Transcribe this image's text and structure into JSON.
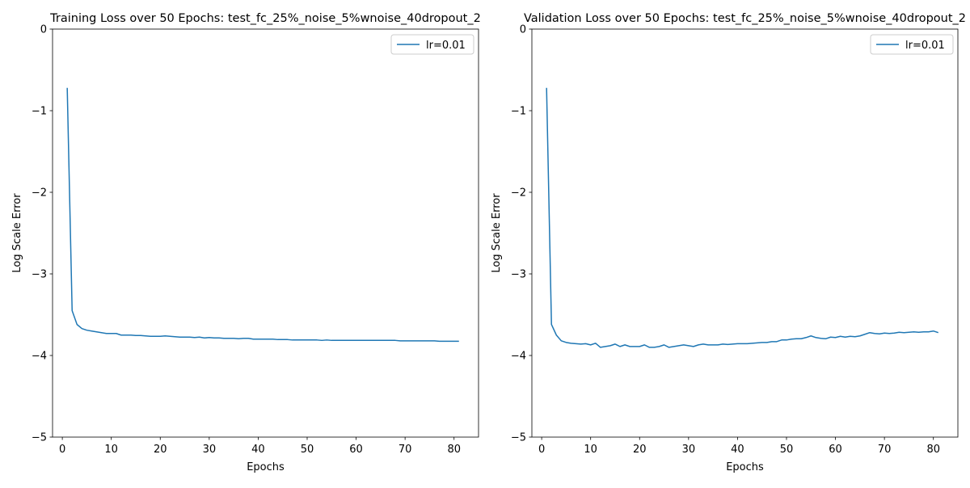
{
  "chart_data": [
    {
      "type": "line",
      "title": "Training Loss over 50 Epochs: test_fc_25%_noise_5%wnoise_40dropout_2",
      "xlabel": "Epochs",
      "ylabel": "Log Scale Error",
      "xlim": [
        -2,
        85
      ],
      "ylim": [
        -5,
        0
      ],
      "xticks": [
        0,
        10,
        20,
        30,
        40,
        50,
        60,
        70,
        80
      ],
      "yticks": [
        0,
        -1,
        -2,
        -3,
        -4,
        -5
      ],
      "yticklabels": [
        "0",
        "−1",
        "−2",
        "−3",
        "−4",
        "−5"
      ],
      "legend_position": "upper right",
      "grid": false,
      "series": [
        {
          "name": "lr=0.01",
          "color": "#1f77b4",
          "x": [
            1,
            2,
            3,
            4,
            5,
            6,
            7,
            8,
            9,
            10,
            11,
            12,
            13,
            14,
            15,
            16,
            17,
            18,
            19,
            20,
            21,
            22,
            23,
            24,
            25,
            26,
            27,
            28,
            29,
            30,
            31,
            32,
            33,
            34,
            35,
            36,
            37,
            38,
            39,
            40,
            41,
            42,
            43,
            44,
            45,
            46,
            47,
            48,
            49,
            50,
            51,
            52,
            53,
            54,
            55,
            56,
            57,
            58,
            59,
            60,
            61,
            62,
            63,
            64,
            65,
            66,
            67,
            68,
            69,
            70,
            71,
            72,
            73,
            74,
            75,
            76,
            77,
            78,
            79,
            80,
            81
          ],
          "values": [
            -0.72,
            -3.45,
            -3.62,
            -3.67,
            -3.69,
            -3.7,
            -3.71,
            -3.72,
            -3.73,
            -3.73,
            -3.73,
            -3.75,
            -3.75,
            -3.75,
            -3.755,
            -3.755,
            -3.76,
            -3.765,
            -3.765,
            -3.765,
            -3.76,
            -3.765,
            -3.77,
            -3.775,
            -3.775,
            -3.775,
            -3.78,
            -3.775,
            -3.785,
            -3.78,
            -3.785,
            -3.785,
            -3.79,
            -3.79,
            -3.79,
            -3.795,
            -3.79,
            -3.79,
            -3.8,
            -3.8,
            -3.8,
            -3.8,
            -3.8,
            -3.805,
            -3.805,
            -3.805,
            -3.81,
            -3.81,
            -3.81,
            -3.81,
            -3.81,
            -3.81,
            -3.815,
            -3.81,
            -3.815,
            -3.815,
            -3.815,
            -3.815,
            -3.815,
            -3.815,
            -3.815,
            -3.815,
            -3.815,
            -3.815,
            -3.815,
            -3.815,
            -3.815,
            -3.815,
            -3.82,
            -3.82,
            -3.82,
            -3.82,
            -3.82,
            -3.82,
            -3.82,
            -3.82,
            -3.825,
            -3.825,
            -3.825,
            -3.825,
            -3.825
          ]
        }
      ]
    },
    {
      "type": "line",
      "title": "Validation Loss over 50 Epochs: test_fc_25%_noise_5%wnoise_40dropout_2",
      "xlabel": "Epochs",
      "ylabel": "Log Scale Error",
      "xlim": [
        -2,
        85
      ],
      "ylim": [
        -5,
        0
      ],
      "xticks": [
        0,
        10,
        20,
        30,
        40,
        50,
        60,
        70,
        80
      ],
      "yticks": [
        0,
        -1,
        -2,
        -3,
        -4,
        -5
      ],
      "yticklabels": [
        "0",
        "−1",
        "−2",
        "−3",
        "−4",
        "−5"
      ],
      "legend_position": "upper right",
      "grid": false,
      "series": [
        {
          "name": "lr=0.01",
          "color": "#1f77b4",
          "x": [
            1,
            2,
            3,
            4,
            5,
            6,
            7,
            8,
            9,
            10,
            11,
            12,
            13,
            14,
            15,
            16,
            17,
            18,
            19,
            20,
            21,
            22,
            23,
            24,
            25,
            26,
            27,
            28,
            29,
            30,
            31,
            32,
            33,
            34,
            35,
            36,
            37,
            38,
            39,
            40,
            41,
            42,
            43,
            44,
            45,
            46,
            47,
            48,
            49,
            50,
            51,
            52,
            53,
            54,
            55,
            56,
            57,
            58,
            59,
            60,
            61,
            62,
            63,
            64,
            65,
            66,
            67,
            68,
            69,
            70,
            71,
            72,
            73,
            74,
            75,
            76,
            77,
            78,
            79,
            80,
            81
          ],
          "values": [
            -0.72,
            -3.62,
            -3.75,
            -3.82,
            -3.84,
            -3.85,
            -3.855,
            -3.86,
            -3.855,
            -3.87,
            -3.85,
            -3.9,
            -3.89,
            -3.88,
            -3.86,
            -3.89,
            -3.87,
            -3.89,
            -3.89,
            -3.89,
            -3.87,
            -3.9,
            -3.9,
            -3.89,
            -3.87,
            -3.9,
            -3.89,
            -3.88,
            -3.87,
            -3.88,
            -3.89,
            -3.87,
            -3.86,
            -3.87,
            -3.87,
            -3.87,
            -3.86,
            -3.865,
            -3.86,
            -3.855,
            -3.855,
            -3.855,
            -3.85,
            -3.845,
            -3.84,
            -3.84,
            -3.83,
            -3.83,
            -3.81,
            -3.81,
            -3.8,
            -3.795,
            -3.795,
            -3.78,
            -3.76,
            -3.78,
            -3.79,
            -3.795,
            -3.775,
            -3.78,
            -3.765,
            -3.775,
            -3.765,
            -3.77,
            -3.76,
            -3.74,
            -3.72,
            -3.73,
            -3.735,
            -3.725,
            -3.73,
            -3.725,
            -3.715,
            -3.72,
            -3.715,
            -3.71,
            -3.715,
            -3.71,
            -3.71,
            -3.7,
            -3.72
          ]
        }
      ]
    }
  ]
}
